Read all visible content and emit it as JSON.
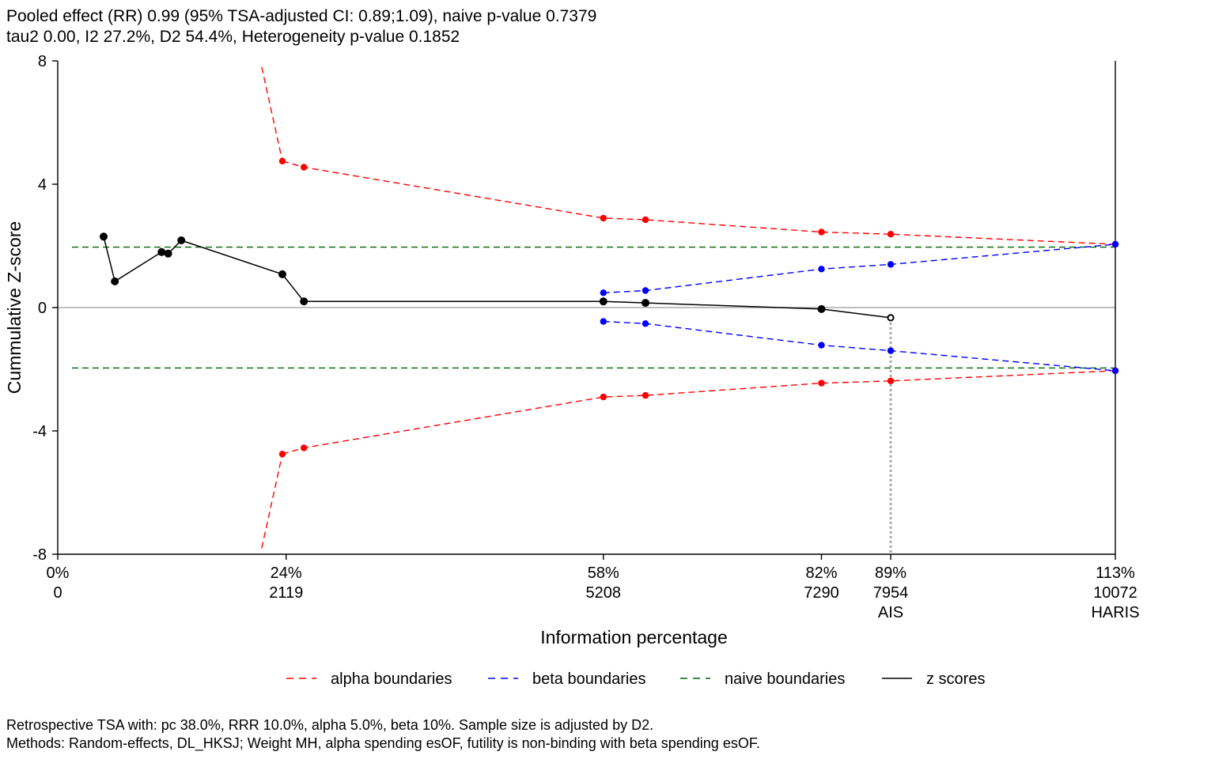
{
  "header": {
    "line1": "Pooled effect (RR) 0.99 (95% TSA-adjusted CI: 0.89;1.09), naive p-value 0.7379",
    "line2": "tau2 0.00, I2 27.2%, D2 54.4%, Heterogeneity p-value 0.1852"
  },
  "footer": {
    "line1": "Retrospective TSA with: pc 38.0%, RRR 10.0%, alpha 5.0%, beta 10%. Sample size is adjusted by D2.",
    "line2": "Methods: Random-effects, DL_HKSJ; Weight MH, alpha spending esOF, futility is non-binding with beta spending esOF."
  },
  "colors": {
    "alpha": "#ff0000",
    "beta": "#0000ff",
    "naive": "#006400",
    "z": "#000000",
    "zero_line": "#aaaaaa",
    "ais_line": "#aaaaaa"
  },
  "chart_data": {
    "type": "line",
    "xlabel": "Information percentage",
    "ylabel": "Cummulative Z-score",
    "xlim": [
      0,
      113
    ],
    "ylim": [
      -8,
      8
    ],
    "y_ticks": [
      {
        "value": 8,
        "label": "8"
      },
      {
        "value": 4,
        "label": "4"
      },
      {
        "value": 0,
        "label": "0"
      },
      {
        "value": -4,
        "label": "-4"
      },
      {
        "value": -8,
        "label": "-8"
      }
    ],
    "x_ticks": [
      {
        "value": 0,
        "label": "0%",
        "n": "0",
        "tag": ""
      },
      {
        "value": 24.4,
        "label": "24%",
        "n": "2119",
        "tag": ""
      },
      {
        "value": 58.3,
        "label": "58%",
        "n": "5208",
        "tag": ""
      },
      {
        "value": 81.6,
        "label": "82%",
        "n": "7290",
        "tag": ""
      },
      {
        "value": 89.0,
        "label": "89%",
        "n": "7954",
        "tag": "AIS"
      },
      {
        "value": 113.0,
        "label": "113%",
        "n": "10072",
        "tag": "HARIS"
      }
    ],
    "naive_boundaries": [
      1.96,
      -1.96
    ],
    "ais_x": 89.0,
    "haris_x": 113.0,
    "series": [
      {
        "name": "alpha boundaries",
        "line_only_upper": [
          [
            21.8,
            7.8
          ],
          [
            24.0,
            4.75
          ]
        ],
        "line_only_lower": [
          [
            21.8,
            -7.8
          ],
          [
            24.0,
            -4.75
          ]
        ],
        "upper": [
          [
            24.0,
            4.75
          ],
          [
            26.3,
            4.55
          ],
          [
            58.3,
            2.9
          ],
          [
            62.8,
            2.85
          ],
          [
            81.6,
            2.45
          ],
          [
            89.0,
            2.38
          ],
          [
            113.0,
            2.05
          ]
        ],
        "lower": [
          [
            24.0,
            -4.75
          ],
          [
            26.3,
            -4.55
          ],
          [
            58.3,
            -2.9
          ],
          [
            62.8,
            -2.85
          ],
          [
            81.6,
            -2.45
          ],
          [
            89.0,
            -2.38
          ],
          [
            113.0,
            -2.05
          ]
        ]
      },
      {
        "name": "beta boundaries",
        "upper": [
          [
            58.3,
            0.48
          ],
          [
            62.8,
            0.55
          ],
          [
            81.6,
            1.25
          ],
          [
            89.0,
            1.4
          ],
          [
            113.0,
            2.05
          ]
        ],
        "lower": [
          [
            58.3,
            -0.45
          ],
          [
            62.8,
            -0.52
          ],
          [
            81.6,
            -1.22
          ],
          [
            89.0,
            -1.4
          ],
          [
            113.0,
            -2.05
          ]
        ]
      },
      {
        "name": "naive boundaries",
        "values": [
          1.96,
          -1.96
        ]
      },
      {
        "name": "z scores",
        "points": [
          [
            4.9,
            2.3
          ],
          [
            6.1,
            0.85
          ],
          [
            11.1,
            1.8
          ],
          [
            11.8,
            1.75
          ],
          [
            13.2,
            2.18
          ],
          [
            24.0,
            1.08
          ],
          [
            26.3,
            0.2
          ],
          [
            58.3,
            0.2
          ],
          [
            62.8,
            0.15
          ],
          [
            81.6,
            -0.05
          ],
          [
            89.0,
            -0.33
          ]
        ]
      }
    ],
    "legend": {
      "placement": "bottom",
      "entries": [
        "alpha boundaries",
        "beta boundaries",
        "naive boundaries",
        "z scores"
      ]
    }
  }
}
